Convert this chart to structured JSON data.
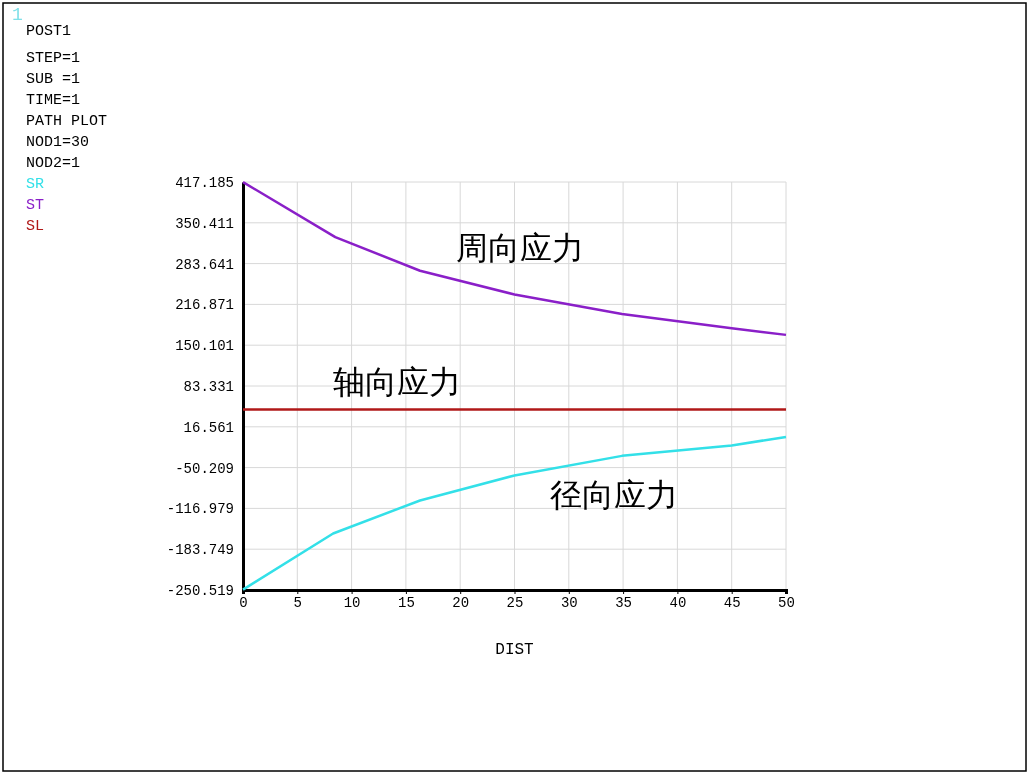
{
  "chart_data": {
    "type": "line",
    "xlabel": "DIST",
    "xlim": [
      0,
      50
    ],
    "xticks": [
      0,
      5,
      10,
      15,
      20,
      25,
      30,
      35,
      40,
      45,
      50
    ],
    "ylim": [
      -250.519,
      417.185
    ],
    "yticks": [
      -250.519,
      -183.749,
      -116.979,
      -50.209,
      16.561,
      83.331,
      150.101,
      216.871,
      283.641,
      350.411,
      417.185
    ],
    "grid": true,
    "legend": "left",
    "line_style": "solid",
    "series": [
      {
        "name": "SR",
        "color": "#33e0e8",
        "x": [
          0,
          8.3,
          16.3,
          25,
          34.9,
          45,
          50
        ],
        "values": [
          -250,
          -158,
          -104,
          -63,
          -31,
          -14,
          0
        ]
      },
      {
        "name": "ST",
        "color": "#8a1fc8",
        "x": [
          0,
          8.5,
          16.3,
          25,
          34.9,
          45,
          50
        ],
        "values": [
          417,
          327,
          272,
          233,
          201,
          178,
          167
        ]
      },
      {
        "name": "SL",
        "color": "#b01818",
        "x": [
          0,
          50
        ],
        "values": [
          45,
          45
        ]
      }
    ],
    "annotations": [
      "1",
      "POST1",
      "STEP=1",
      "SUB =1",
      "TIME=1",
      "PATH PLOT",
      "NOD1=30",
      "NOD2=1",
      "周向应力",
      "轴向应力",
      "径向应力"
    ]
  }
}
